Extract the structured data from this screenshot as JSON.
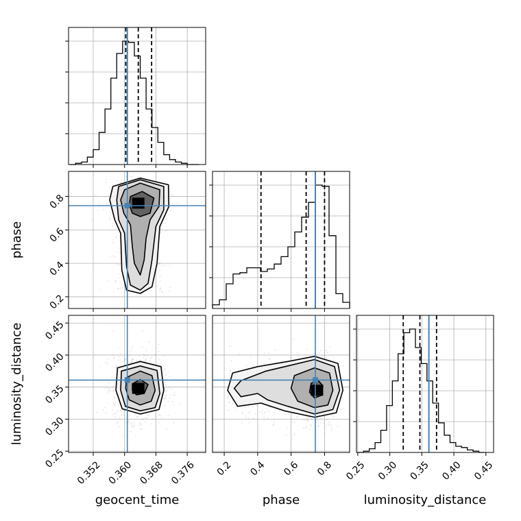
{
  "chart_data": {
    "type": "corner",
    "parameters": [
      {
        "name": "geocent_time",
        "label": "geocent_time",
        "range": [
          0.3457,
          0.3807
        ],
        "ticks": [
          0.352,
          0.36,
          0.368,
          0.376
        ],
        "tick_labels": [
          "0.352",
          "0.360",
          "0.368",
          "0.376"
        ],
        "truth": 0.3607,
        "quantiles": [
          0.3603,
          0.3635,
          0.3669
        ],
        "hist": {
          "edges": [
            0.346,
            0.3475,
            0.349,
            0.3505,
            0.352,
            0.3535,
            0.355,
            0.3565,
            0.358,
            0.3595,
            0.361,
            0.3625,
            0.364,
            0.3655,
            0.367,
            0.3685,
            0.37,
            0.3715,
            0.373,
            0.3745,
            0.376,
            0.3775,
            0.379
          ],
          "counts": [
            0,
            1,
            2,
            6,
            12,
            26,
            45,
            70,
            90,
            100,
            99,
            88,
            70,
            45,
            30,
            18,
            8,
            4,
            2,
            1,
            0,
            0
          ]
        }
      },
      {
        "name": "phase",
        "label": "phase",
        "range": [
          0.13,
          0.95
        ],
        "ticks": [
          0.2,
          0.4,
          0.6,
          0.8
        ],
        "tick_labels": [
          "0.2",
          "0.4",
          "0.6",
          "0.8"
        ],
        "truth": 0.745,
        "quantiles": [
          0.42,
          0.69,
          0.8
        ],
        "hist": {
          "edges": [
            0.13,
            0.171,
            0.212,
            0.253,
            0.294,
            0.335,
            0.376,
            0.417,
            0.458,
            0.499,
            0.54,
            0.581,
            0.622,
            0.663,
            0.704,
            0.745,
            0.786,
            0.827,
            0.868,
            0.909,
            0.95
          ],
          "counts": [
            3,
            7,
            20,
            28,
            29,
            33,
            33,
            30,
            32,
            36,
            42,
            50,
            62,
            74,
            86,
            100,
            99,
            59,
            12,
            5
          ]
        }
      },
      {
        "name": "luminosity_distance",
        "label": "luminosity_distance",
        "range": [
          0.248,
          0.462
        ],
        "ticks": [
          0.25,
          0.3,
          0.35,
          0.4,
          0.45
        ],
        "tick_labels": [
          "0.25",
          "0.30",
          "0.35",
          "0.40",
          "0.45"
        ],
        "truth": 0.361,
        "quantiles": [
          0.321,
          0.347,
          0.373
        ],
        "hist": {
          "edges": [
            0.25,
            0.259,
            0.268,
            0.277,
            0.286,
            0.295,
            0.304,
            0.313,
            0.322,
            0.331,
            0.34,
            0.349,
            0.358,
            0.367,
            0.376,
            0.385,
            0.394,
            0.403,
            0.412,
            0.421,
            0.43,
            0.439,
            0.448
          ],
          "counts": [
            0,
            1,
            3,
            8,
            18,
            38,
            58,
            80,
            97,
            100,
            85,
            72,
            58,
            40,
            24,
            14,
            8,
            5,
            4,
            2,
            1,
            0
          ]
        }
      }
    ],
    "pairs": [
      {
        "x": "geocent_time",
        "y": "phase",
        "peak": [
          0.3635,
          0.76
        ],
        "contours": [
          [
            [
              0.3615,
              0.8
            ],
            [
              0.3645,
              0.83
            ],
            [
              0.3675,
              0.79
            ],
            [
              0.3665,
              0.7
            ],
            [
              0.364,
              0.68
            ],
            [
              0.362,
              0.7
            ],
            [
              0.3612,
              0.75
            ]
          ],
          [
            [
              0.36,
              0.84
            ],
            [
              0.364,
              0.88
            ],
            [
              0.369,
              0.84
            ],
            [
              0.3688,
              0.74
            ],
            [
              0.3665,
              0.66
            ],
            [
              0.3655,
              0.55
            ],
            [
              0.365,
              0.42
            ],
            [
              0.364,
              0.33
            ],
            [
              0.3625,
              0.4
            ],
            [
              0.362,
              0.5
            ],
            [
              0.3615,
              0.63
            ],
            [
              0.3598,
              0.7
            ],
            [
              0.359,
              0.78
            ]
          ],
          [
            [
              0.3585,
              0.86
            ],
            [
              0.364,
              0.9
            ],
            [
              0.37,
              0.86
            ],
            [
              0.37,
              0.72
            ],
            [
              0.368,
              0.62
            ],
            [
              0.367,
              0.42
            ],
            [
              0.366,
              0.28
            ],
            [
              0.364,
              0.24
            ],
            [
              0.3615,
              0.27
            ],
            [
              0.3605,
              0.38
            ],
            [
              0.36,
              0.58
            ],
            [
              0.3585,
              0.66
            ],
            [
              0.358,
              0.78
            ]
          ],
          [
            [
              0.357,
              0.86
            ],
            [
              0.364,
              0.91
            ],
            [
              0.3712,
              0.87
            ],
            [
              0.3713,
              0.74
            ],
            [
              0.369,
              0.62
            ],
            [
              0.3683,
              0.4
            ],
            [
              0.367,
              0.26
            ],
            [
              0.364,
              0.22
            ],
            [
              0.3605,
              0.24
            ],
            [
              0.3593,
              0.36
            ],
            [
              0.359,
              0.58
            ],
            [
              0.3575,
              0.66
            ],
            [
              0.3562,
              0.78
            ]
          ]
        ]
      },
      {
        "x": "geocent_time",
        "y": "luminosity_distance",
        "peak": [
          0.3635,
          0.348
        ],
        "contours": [
          [
            [
              0.362,
              0.355
            ],
            [
              0.364,
              0.362
            ],
            [
              0.366,
              0.354
            ],
            [
              0.365,
              0.34
            ],
            [
              0.363,
              0.338
            ],
            [
              0.362,
              0.345
            ]
          ],
          [
            [
              0.3605,
              0.365
            ],
            [
              0.364,
              0.375
            ],
            [
              0.367,
              0.368
            ],
            [
              0.3678,
              0.345
            ],
            [
              0.3668,
              0.328
            ],
            [
              0.364,
              0.322
            ],
            [
              0.3612,
              0.33
            ],
            [
              0.3603,
              0.348
            ]
          ],
          [
            [
              0.3592,
              0.375
            ],
            [
              0.364,
              0.383
            ],
            [
              0.3683,
              0.376
            ],
            [
              0.369,
              0.34
            ],
            [
              0.3678,
              0.318
            ],
            [
              0.364,
              0.313
            ],
            [
              0.3602,
              0.32
            ],
            [
              0.359,
              0.345
            ]
          ],
          [
            [
              0.3582,
              0.38
            ],
            [
              0.364,
              0.39
            ],
            [
              0.3693,
              0.382
            ],
            [
              0.37,
              0.345
            ],
            [
              0.3688,
              0.315
            ],
            [
              0.364,
              0.308
            ],
            [
              0.3594,
              0.316
            ],
            [
              0.3578,
              0.345
            ]
          ]
        ]
      },
      {
        "x": "phase",
        "y": "luminosity_distance",
        "peak": [
          0.755,
          0.345
        ],
        "contours": [
          [
            [
              0.72,
              0.356
            ],
            [
              0.76,
              0.361
            ],
            [
              0.79,
              0.352
            ],
            [
              0.78,
              0.337
            ],
            [
              0.74,
              0.333
            ],
            [
              0.71,
              0.342
            ]
          ],
          [
            [
              0.62,
              0.368
            ],
            [
              0.74,
              0.38
            ],
            [
              0.83,
              0.372
            ],
            [
              0.85,
              0.345
            ],
            [
              0.82,
              0.322
            ],
            [
              0.74,
              0.318
            ],
            [
              0.64,
              0.328
            ],
            [
              0.6,
              0.348
            ]
          ],
          [
            [
              0.3,
              0.36
            ],
            [
              0.45,
              0.375
            ],
            [
              0.58,
              0.383
            ],
            [
              0.74,
              0.393
            ],
            [
              0.86,
              0.382
            ],
            [
              0.89,
              0.345
            ],
            [
              0.85,
              0.315
            ],
            [
              0.74,
              0.308
            ],
            [
              0.58,
              0.32
            ],
            [
              0.46,
              0.33
            ],
            [
              0.4,
              0.34
            ],
            [
              0.3,
              0.335
            ],
            [
              0.26,
              0.348
            ]
          ],
          [
            [
              0.25,
              0.372
            ],
            [
              0.4,
              0.382
            ],
            [
              0.58,
              0.39
            ],
            [
              0.74,
              0.398
            ],
            [
              0.88,
              0.387
            ],
            [
              0.91,
              0.345
            ],
            [
              0.87,
              0.31
            ],
            [
              0.74,
              0.303
            ],
            [
              0.56,
              0.313
            ],
            [
              0.42,
              0.325
            ],
            [
              0.28,
              0.32
            ],
            [
              0.22,
              0.345
            ]
          ]
        ]
      }
    ],
    "line_colors": {
      "truth": "#4682b4",
      "quantile": "#000000",
      "hist": "#000000",
      "contour": "#000000",
      "density": "#000000",
      "samples": "#999999",
      "grid": "#b0b0b0"
    },
    "grid": true
  }
}
